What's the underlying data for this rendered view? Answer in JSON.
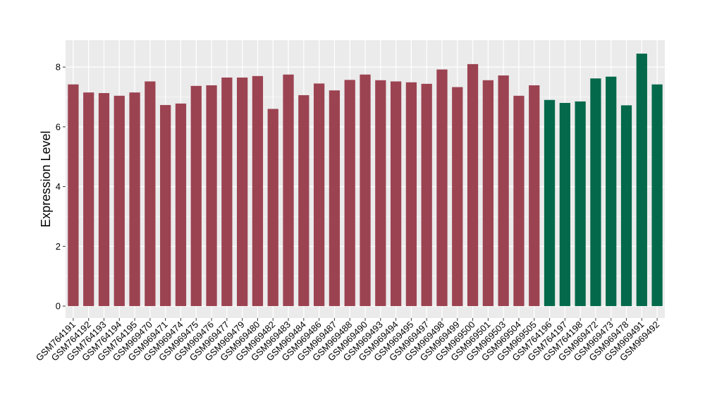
{
  "chart_data": {
    "type": "bar",
    "title": "",
    "xlabel": "",
    "ylabel": "Expression Level",
    "ylim": [
      -0.4,
      8.9
    ],
    "yticks": [
      0,
      2,
      4,
      6,
      8
    ],
    "grid": true,
    "legend": "none",
    "colors": {
      "group1": "#9c4352",
      "group2": "#03694a",
      "panel_bg": "#ebebeb",
      "grid": "#ffffff"
    },
    "categories": [
      "GSM764191",
      "GSM764192",
      "GSM764193",
      "GSM764194",
      "GSM764195",
      "GSM969470",
      "GSM969471",
      "GSM969474",
      "GSM969475",
      "GSM969476",
      "GSM969477",
      "GSM969479",
      "GSM969480",
      "GSM969482",
      "GSM969483",
      "GSM969484",
      "GSM969486",
      "GSM969487",
      "GSM969488",
      "GSM969490",
      "GSM969493",
      "GSM969494",
      "GSM969495",
      "GSM969497",
      "GSM969498",
      "GSM969499",
      "GSM969500",
      "GSM969501",
      "GSM969503",
      "GSM969504",
      "GSM969505",
      "GSM764196",
      "GSM764197",
      "GSM764198",
      "GSM969472",
      "GSM969473",
      "GSM969478",
      "GSM969491",
      "GSM969492"
    ],
    "values": [
      7.42,
      7.15,
      7.13,
      7.04,
      7.15,
      7.52,
      6.73,
      6.78,
      7.37,
      7.39,
      7.65,
      7.65,
      7.7,
      6.6,
      7.75,
      7.06,
      7.45,
      7.22,
      7.57,
      7.75,
      7.56,
      7.52,
      7.49,
      7.44,
      7.92,
      7.33,
      8.1,
      7.56,
      7.72,
      7.04,
      7.39,
      6.9,
      6.8,
      6.85,
      7.62,
      7.68,
      6.72,
      8.45,
      7.42
    ],
    "groups": [
      "group1",
      "group1",
      "group1",
      "group1",
      "group1",
      "group1",
      "group1",
      "group1",
      "group1",
      "group1",
      "group1",
      "group1",
      "group1",
      "group1",
      "group1",
      "group1",
      "group1",
      "group1",
      "group1",
      "group1",
      "group1",
      "group1",
      "group1",
      "group1",
      "group1",
      "group1",
      "group1",
      "group1",
      "group1",
      "group1",
      "group1",
      "group2",
      "group2",
      "group2",
      "group2",
      "group2",
      "group2",
      "group2",
      "group2"
    ]
  }
}
